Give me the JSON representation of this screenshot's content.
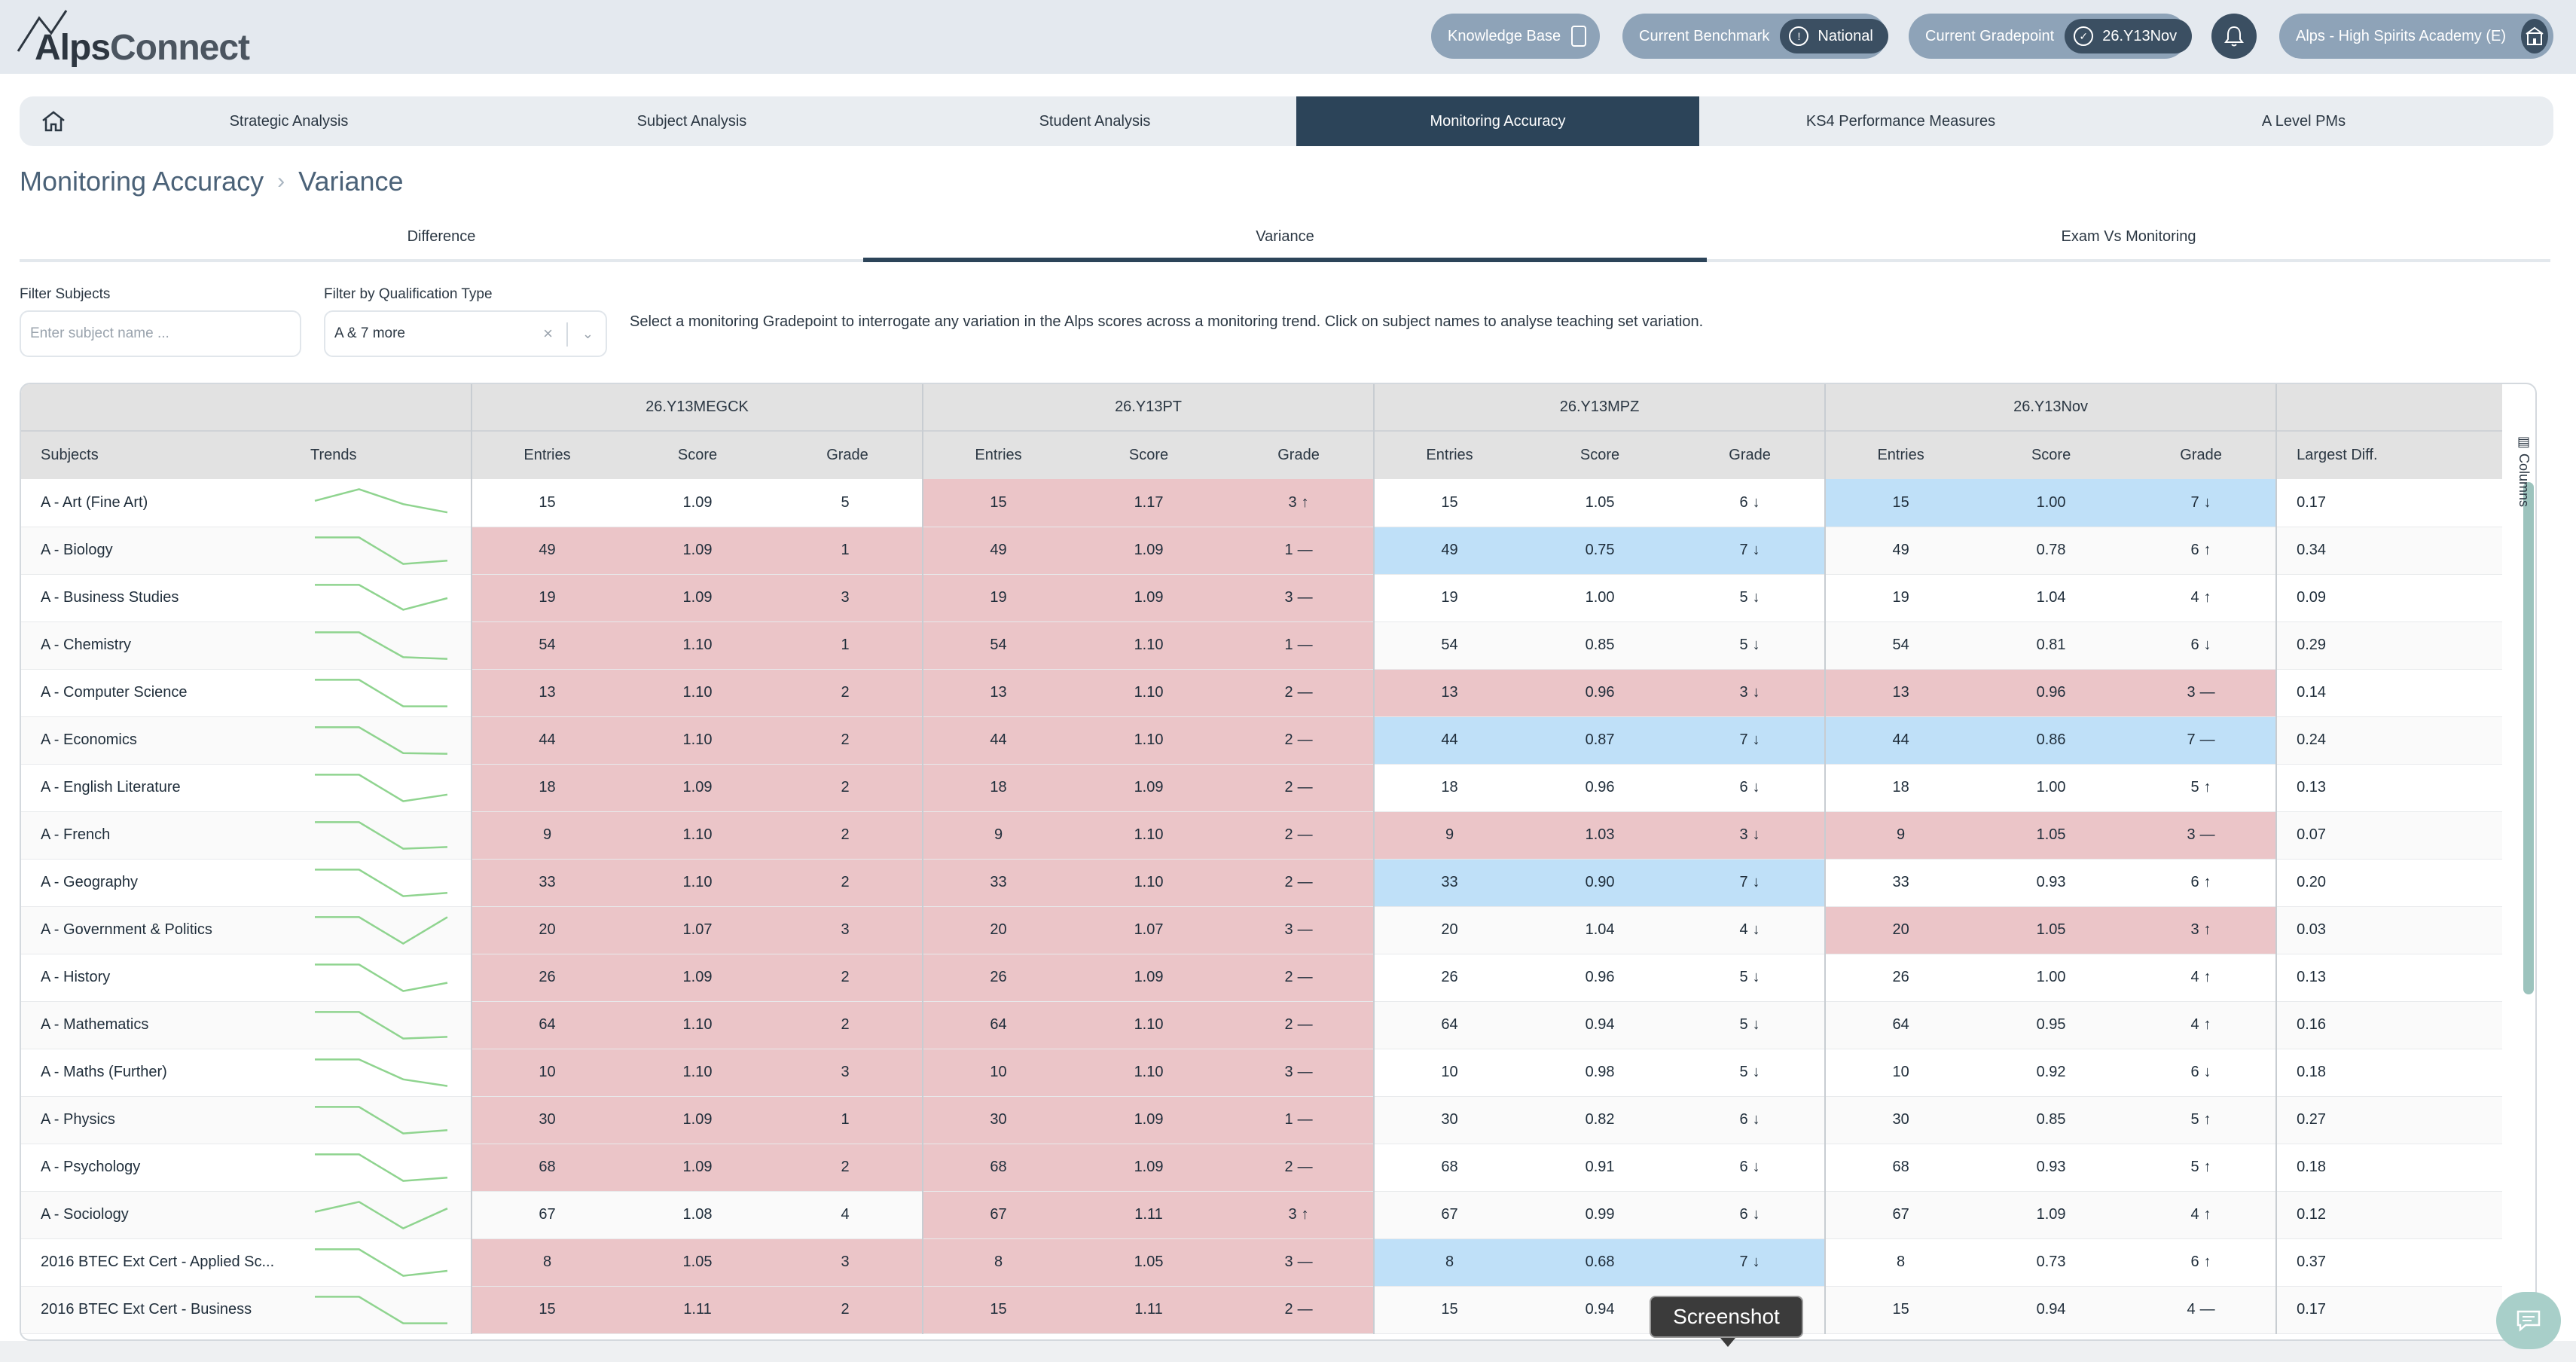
{
  "brand": {
    "logo_text_1": "Alps",
    "logo_text_2": "Connect"
  },
  "topbar": {
    "knowledge_base": "Knowledge Base",
    "benchmark_label": "Current Benchmark",
    "benchmark_value": "National",
    "gradepoint_label": "Current Gradepoint",
    "gradepoint_value": "26.Y13Nov",
    "school": "Alps - High Spirits Academy (E)"
  },
  "nav": {
    "tabs": [
      {
        "label": "Strategic Analysis"
      },
      {
        "label": "Subject Analysis"
      },
      {
        "label": "Student Analysis"
      },
      {
        "label": "Monitoring Accuracy"
      },
      {
        "label": "KS4 Performance Measures"
      },
      {
        "label": "A Level PMs"
      }
    ],
    "active_index": 3
  },
  "breadcrumb": {
    "section": "Monitoring Accuracy",
    "page": "Variance"
  },
  "subtabs": [
    "Difference",
    "Variance",
    "Exam Vs Monitoring"
  ],
  "filters": {
    "subject_label": "Filter Subjects",
    "subject_placeholder": "Enter subject name ...",
    "qual_label": "Filter by Qualification Type",
    "qual_value": "A & 7 more"
  },
  "hint": "Select a monitoring Gradepoint to interrogate any variation in the Alps scores across a monitoring trend. Click on subject names to analyse teaching set variation.",
  "table": {
    "groups": [
      "26.Y13MEGCK",
      "26.Y13PT",
      "26.Y13MPZ",
      "26.Y13Nov"
    ],
    "headers": {
      "subjects": "Subjects",
      "trends": "Trends",
      "entries": "Entries",
      "score": "Score",
      "grade": "Grade",
      "largest_diff": "Largest Diff."
    },
    "columns_label": "Columns",
    "rows": [
      {
        "subject": "A - Art (Fine Art)",
        "g": [
          {
            "e": "15",
            "s": "1.09",
            "gr": "5",
            "a": "",
            "c": ""
          },
          {
            "e": "15",
            "s": "1.17",
            "gr": "3",
            "a": "↑",
            "c": "red"
          },
          {
            "e": "15",
            "s": "1.05",
            "gr": "6",
            "a": "↓",
            "c": ""
          },
          {
            "e": "15",
            "s": "1.00",
            "gr": "7",
            "a": "↓",
            "c": "blue"
          }
        ],
        "diff": "0.17",
        "trend": [
          0.45,
          0.1,
          0.55,
          0.8
        ]
      },
      {
        "subject": "A - Biology",
        "g": [
          {
            "e": "49",
            "s": "1.09",
            "gr": "1",
            "a": "",
            "c": "red"
          },
          {
            "e": "49",
            "s": "1.09",
            "gr": "1",
            "a": "—",
            "c": "red"
          },
          {
            "e": "49",
            "s": "0.75",
            "gr": "7",
            "a": "↓",
            "c": "blue"
          },
          {
            "e": "49",
            "s": "0.78",
            "gr": "6",
            "a": "↑",
            "c": ""
          }
        ],
        "diff": "0.34",
        "trend": [
          0.1,
          0.1,
          0.9,
          0.8
        ]
      },
      {
        "subject": "A - Business Studies",
        "g": [
          {
            "e": "19",
            "s": "1.09",
            "gr": "3",
            "a": "",
            "c": "red"
          },
          {
            "e": "19",
            "s": "1.09",
            "gr": "3",
            "a": "—",
            "c": "red"
          },
          {
            "e": "19",
            "s": "1.00",
            "gr": "5",
            "a": "↓",
            "c": ""
          },
          {
            "e": "19",
            "s": "1.04",
            "gr": "4",
            "a": "↑",
            "c": ""
          }
        ],
        "diff": "0.09",
        "trend": [
          0.1,
          0.1,
          0.85,
          0.5
        ]
      },
      {
        "subject": "A - Chemistry",
        "g": [
          {
            "e": "54",
            "s": "1.10",
            "gr": "1",
            "a": "",
            "c": "red"
          },
          {
            "e": "54",
            "s": "1.10",
            "gr": "1",
            "a": "—",
            "c": "red"
          },
          {
            "e": "54",
            "s": "0.85",
            "gr": "5",
            "a": "↓",
            "c": ""
          },
          {
            "e": "54",
            "s": "0.81",
            "gr": "6",
            "a": "↓",
            "c": ""
          }
        ],
        "diff": "0.29",
        "trend": [
          0.1,
          0.1,
          0.85,
          0.9
        ]
      },
      {
        "subject": "A - Computer Science",
        "g": [
          {
            "e": "13",
            "s": "1.10",
            "gr": "2",
            "a": "",
            "c": "red"
          },
          {
            "e": "13",
            "s": "1.10",
            "gr": "2",
            "a": "—",
            "c": "red"
          },
          {
            "e": "13",
            "s": "0.96",
            "gr": "3",
            "a": "↓",
            "c": "red"
          },
          {
            "e": "13",
            "s": "0.96",
            "gr": "3",
            "a": "—",
            "c": "red"
          }
        ],
        "diff": "0.14",
        "trend": [
          0.1,
          0.1,
          0.9,
          0.9
        ]
      },
      {
        "subject": "A - Economics",
        "g": [
          {
            "e": "44",
            "s": "1.10",
            "gr": "2",
            "a": "",
            "c": "red"
          },
          {
            "e": "44",
            "s": "1.10",
            "gr": "2",
            "a": "—",
            "c": "red"
          },
          {
            "e": "44",
            "s": "0.87",
            "gr": "7",
            "a": "↓",
            "c": "blue"
          },
          {
            "e": "44",
            "s": "0.86",
            "gr": "7",
            "a": "—",
            "c": "blue"
          }
        ],
        "diff": "0.24",
        "trend": [
          0.1,
          0.1,
          0.88,
          0.9
        ]
      },
      {
        "subject": "A - English Literature",
        "g": [
          {
            "e": "18",
            "s": "1.09",
            "gr": "2",
            "a": "",
            "c": "red"
          },
          {
            "e": "18",
            "s": "1.09",
            "gr": "2",
            "a": "—",
            "c": "red"
          },
          {
            "e": "18",
            "s": "0.96",
            "gr": "6",
            "a": "↓",
            "c": ""
          },
          {
            "e": "18",
            "s": "1.00",
            "gr": "5",
            "a": "↑",
            "c": ""
          }
        ],
        "diff": "0.13",
        "trend": [
          0.1,
          0.1,
          0.9,
          0.7
        ]
      },
      {
        "subject": "A - French",
        "g": [
          {
            "e": "9",
            "s": "1.10",
            "gr": "2",
            "a": "",
            "c": "red"
          },
          {
            "e": "9",
            "s": "1.10",
            "gr": "2",
            "a": "—",
            "c": "red"
          },
          {
            "e": "9",
            "s": "1.03",
            "gr": "3",
            "a": "↓",
            "c": "red"
          },
          {
            "e": "9",
            "s": "1.05",
            "gr": "3",
            "a": "—",
            "c": "red"
          }
        ],
        "diff": "0.07",
        "trend": [
          0.1,
          0.1,
          0.9,
          0.85
        ]
      },
      {
        "subject": "A - Geography",
        "g": [
          {
            "e": "33",
            "s": "1.10",
            "gr": "2",
            "a": "",
            "c": "red"
          },
          {
            "e": "33",
            "s": "1.10",
            "gr": "2",
            "a": "—",
            "c": "red"
          },
          {
            "e": "33",
            "s": "0.90",
            "gr": "7",
            "a": "↓",
            "c": "blue"
          },
          {
            "e": "33",
            "s": "0.93",
            "gr": "6",
            "a": "↑",
            "c": ""
          }
        ],
        "diff": "0.20",
        "trend": [
          0.1,
          0.1,
          0.9,
          0.8
        ]
      },
      {
        "subject": "A - Government & Politics",
        "g": [
          {
            "e": "20",
            "s": "1.07",
            "gr": "3",
            "a": "",
            "c": "red"
          },
          {
            "e": "20",
            "s": "1.07",
            "gr": "3",
            "a": "—",
            "c": "red"
          },
          {
            "e": "20",
            "s": "1.04",
            "gr": "4",
            "a": "↓",
            "c": ""
          },
          {
            "e": "20",
            "s": "1.05",
            "gr": "3",
            "a": "↑",
            "c": "red"
          }
        ],
        "diff": "0.03",
        "trend": [
          0.1,
          0.1,
          0.9,
          0.1
        ]
      },
      {
        "subject": "A - History",
        "g": [
          {
            "e": "26",
            "s": "1.09",
            "gr": "2",
            "a": "",
            "c": "red"
          },
          {
            "e": "26",
            "s": "1.09",
            "gr": "2",
            "a": "—",
            "c": "red"
          },
          {
            "e": "26",
            "s": "0.96",
            "gr": "5",
            "a": "↓",
            "c": ""
          },
          {
            "e": "26",
            "s": "1.00",
            "gr": "4",
            "a": "↑",
            "c": ""
          }
        ],
        "diff": "0.13",
        "trend": [
          0.1,
          0.1,
          0.9,
          0.65
        ]
      },
      {
        "subject": "A - Mathematics",
        "g": [
          {
            "e": "64",
            "s": "1.10",
            "gr": "2",
            "a": "",
            "c": "red"
          },
          {
            "e": "64",
            "s": "1.10",
            "gr": "2",
            "a": "—",
            "c": "red"
          },
          {
            "e": "64",
            "s": "0.94",
            "gr": "5",
            "a": "↓",
            "c": ""
          },
          {
            "e": "64",
            "s": "0.95",
            "gr": "4",
            "a": "↑",
            "c": ""
          }
        ],
        "diff": "0.16",
        "trend": [
          0.1,
          0.1,
          0.9,
          0.85
        ]
      },
      {
        "subject": "A - Maths (Further)",
        "g": [
          {
            "e": "10",
            "s": "1.10",
            "gr": "3",
            "a": "",
            "c": "red"
          },
          {
            "e": "10",
            "s": "1.10",
            "gr": "3",
            "a": "—",
            "c": "red"
          },
          {
            "e": "10",
            "s": "0.98",
            "gr": "5",
            "a": "↓",
            "c": ""
          },
          {
            "e": "10",
            "s": "0.92",
            "gr": "6",
            "a": "↓",
            "c": ""
          }
        ],
        "diff": "0.18",
        "trend": [
          0.1,
          0.1,
          0.7,
          0.9
        ]
      },
      {
        "subject": "A - Physics",
        "g": [
          {
            "e": "30",
            "s": "1.09",
            "gr": "1",
            "a": "",
            "c": "red"
          },
          {
            "e": "30",
            "s": "1.09",
            "gr": "1",
            "a": "—",
            "c": "red"
          },
          {
            "e": "30",
            "s": "0.82",
            "gr": "6",
            "a": "↓",
            "c": ""
          },
          {
            "e": "30",
            "s": "0.85",
            "gr": "5",
            "a": "↑",
            "c": ""
          }
        ],
        "diff": "0.27",
        "trend": [
          0.1,
          0.1,
          0.9,
          0.8
        ]
      },
      {
        "subject": "A - Psychology",
        "g": [
          {
            "e": "68",
            "s": "1.09",
            "gr": "2",
            "a": "",
            "c": "red"
          },
          {
            "e": "68",
            "s": "1.09",
            "gr": "2",
            "a": "—",
            "c": "red"
          },
          {
            "e": "68",
            "s": "0.91",
            "gr": "6",
            "a": "↓",
            "c": ""
          },
          {
            "e": "68",
            "s": "0.93",
            "gr": "5",
            "a": "↑",
            "c": ""
          }
        ],
        "diff": "0.18",
        "trend": [
          0.1,
          0.1,
          0.9,
          0.8
        ]
      },
      {
        "subject": "A - Sociology",
        "g": [
          {
            "e": "67",
            "s": "1.08",
            "gr": "4",
            "a": "",
            "c": ""
          },
          {
            "e": "67",
            "s": "1.11",
            "gr": "3",
            "a": "↑",
            "c": "red"
          },
          {
            "e": "67",
            "s": "0.99",
            "gr": "6",
            "a": "↓",
            "c": ""
          },
          {
            "e": "67",
            "s": "1.09",
            "gr": "4",
            "a": "↑",
            "c": ""
          }
        ],
        "diff": "0.12",
        "trend": [
          0.4,
          0.1,
          0.9,
          0.3
        ]
      },
      {
        "subject": "2016 BTEC Ext Cert - Applied Sc...",
        "g": [
          {
            "e": "8",
            "s": "1.05",
            "gr": "3",
            "a": "",
            "c": "red"
          },
          {
            "e": "8",
            "s": "1.05",
            "gr": "3",
            "a": "—",
            "c": "red"
          },
          {
            "e": "8",
            "s": "0.68",
            "gr": "7",
            "a": "↓",
            "c": "blue"
          },
          {
            "e": "8",
            "s": "0.73",
            "gr": "6",
            "a": "↑",
            "c": ""
          }
        ],
        "diff": "0.37",
        "trend": [
          0.1,
          0.1,
          0.9,
          0.75
        ]
      },
      {
        "subject": "2016 BTEC Ext Cert - Business",
        "g": [
          {
            "e": "15",
            "s": "1.11",
            "gr": "2",
            "a": "",
            "c": "red"
          },
          {
            "e": "15",
            "s": "1.11",
            "gr": "2",
            "a": "—",
            "c": "red"
          },
          {
            "e": "15",
            "s": "0.94",
            "gr": "",
            "a": "",
            "c": ""
          },
          {
            "e": "15",
            "s": "0.94",
            "gr": "4",
            "a": "—",
            "c": ""
          }
        ],
        "diff": "0.17",
        "trend": [
          0.1,
          0.1,
          0.9,
          0.9
        ]
      }
    ]
  },
  "overlay": {
    "tooltip": "Screenshot"
  },
  "colors": {
    "red_cell": "#ebc5c8",
    "blue_cell": "#bfe0f8",
    "active_tab": "#2c4459",
    "trend_line": "#8fd48f"
  }
}
